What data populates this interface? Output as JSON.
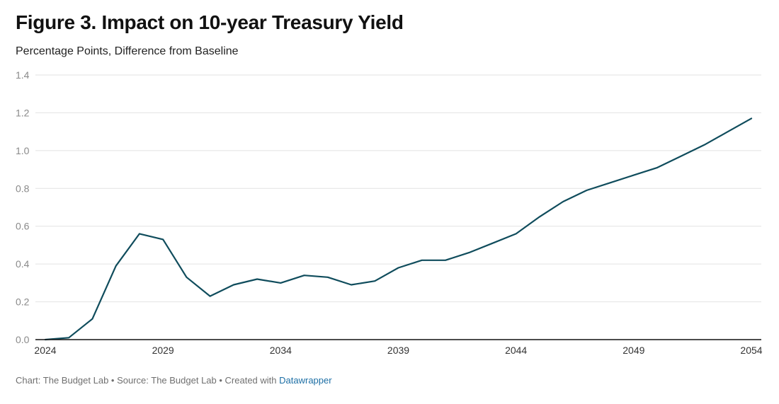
{
  "header": {
    "title": "Figure 3. Impact on 10-year Treasury Yield",
    "subtitle": "Percentage Points, Difference from Baseline"
  },
  "footer": {
    "source_text": "Chart: The Budget Lab • Source: The Budget Lab • Created with ",
    "link_text": "Datawrapper"
  },
  "colors": {
    "line": "#0f4c5c",
    "grid": "#e2e2e2",
    "axis": "#111111",
    "tick_label": "#8a8a8a",
    "x_tick_label": "#333333"
  },
  "chart_data": {
    "type": "line",
    "title": "Figure 3. Impact on 10-year Treasury Yield",
    "subtitle": "Percentage Points, Difference from Baseline",
    "xlabel": "",
    "ylabel": "",
    "xlim": [
      2024,
      2054
    ],
    "ylim": [
      0,
      1.4
    ],
    "x_ticks": [
      "2024",
      "2029",
      "2034",
      "2039",
      "2044",
      "2049",
      "2054"
    ],
    "y_ticks": [
      "0.0",
      "0.2",
      "0.4",
      "0.6",
      "0.8",
      "1.0",
      "1.2",
      "1.4"
    ],
    "grid": true,
    "series": [
      {
        "x": [
          2024,
          2025,
          2026,
          2027,
          2028,
          2029,
          2030,
          2031,
          2032,
          2033,
          2034,
          2035,
          2036,
          2037,
          2038,
          2039,
          2040,
          2041,
          2042,
          2043,
          2044,
          2045,
          2046,
          2047,
          2048,
          2049,
          2050,
          2051,
          2052,
          2053,
          2054
        ],
        "values": [
          0.0,
          0.01,
          0.11,
          0.39,
          0.56,
          0.53,
          0.33,
          0.23,
          0.29,
          0.32,
          0.3,
          0.34,
          0.33,
          0.29,
          0.31,
          0.38,
          0.42,
          0.42,
          0.46,
          0.51,
          0.56,
          0.65,
          0.73,
          0.79,
          0.83,
          0.87,
          0.91,
          0.97,
          1.03,
          1.1,
          1.17
        ]
      }
    ]
  }
}
